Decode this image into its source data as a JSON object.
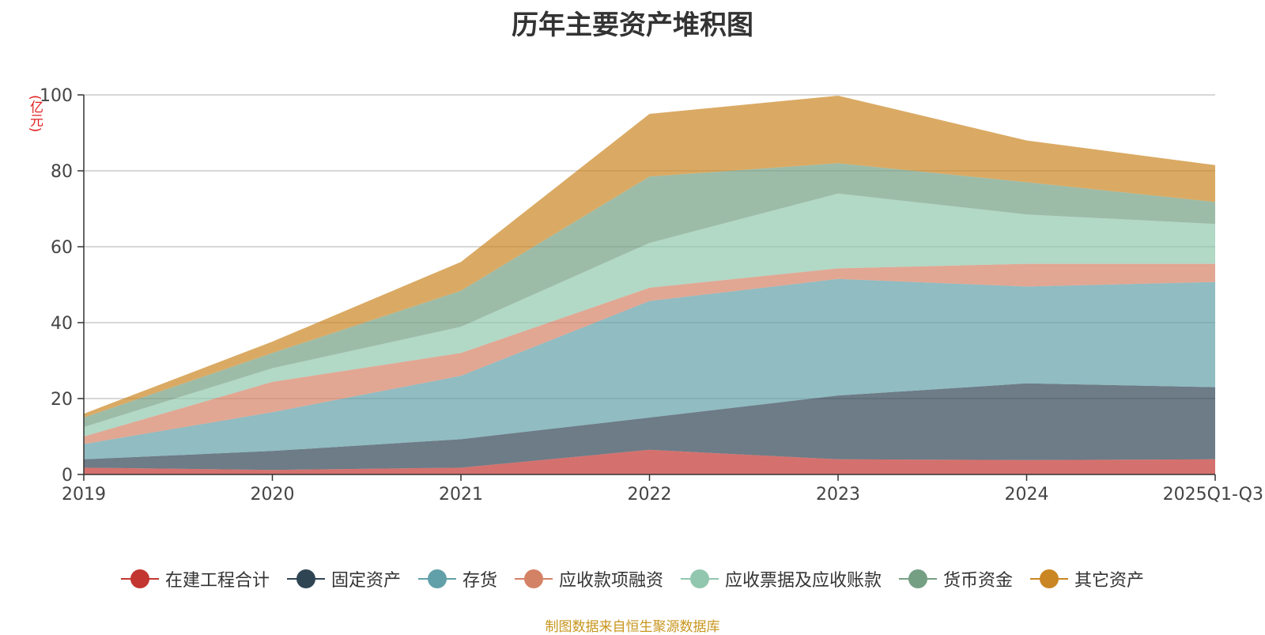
{
  "chart_data": {
    "type": "area",
    "stacked": true,
    "title": "历年主要资产堆积图",
    "unit_label": "(亿元)",
    "x": [
      "2019",
      "2020",
      "2021",
      "2022",
      "2023",
      "2024",
      "2025Q1-Q3"
    ],
    "ylim": [
      0,
      100
    ],
    "yticks": [
      0,
      20,
      40,
      60,
      80,
      100
    ],
    "grid": true,
    "legend_position": "bottom",
    "series": [
      {
        "name": "在建工程合计",
        "color": "#c23531",
        "values": [
          1.8,
          1.2,
          1.8,
          6.5,
          4.0,
          3.8,
          4.0
        ]
      },
      {
        "name": "固定资产",
        "color": "#2f4554",
        "values": [
          2.2,
          5.0,
          7.5,
          8.5,
          16.8,
          20.2,
          19.0
        ]
      },
      {
        "name": "存货",
        "color": "#61a0a8",
        "values": [
          4.0,
          10.2,
          16.7,
          30.7,
          30.7,
          25.5,
          27.7
        ]
      },
      {
        "name": "应收款项融资",
        "color": "#d48265",
        "values": [
          2.0,
          8.0,
          6.0,
          3.5,
          2.8,
          6.0,
          4.8
        ]
      },
      {
        "name": "应收票据及应收账款",
        "color": "#91c7ae",
        "values": [
          2.5,
          3.6,
          6.9,
          11.8,
          19.7,
          13.0,
          10.5
        ]
      },
      {
        "name": "货币资金",
        "color": "#749f83",
        "values": [
          2.5,
          4.0,
          9.5,
          17.5,
          8.0,
          8.5,
          5.8
        ]
      },
      {
        "name": "其它资产",
        "color": "#ca8622",
        "values": [
          1.0,
          3.0,
          7.6,
          16.5,
          17.8,
          11.0,
          9.7
        ]
      }
    ],
    "source": "制图数据来自恒生聚源数据库"
  }
}
